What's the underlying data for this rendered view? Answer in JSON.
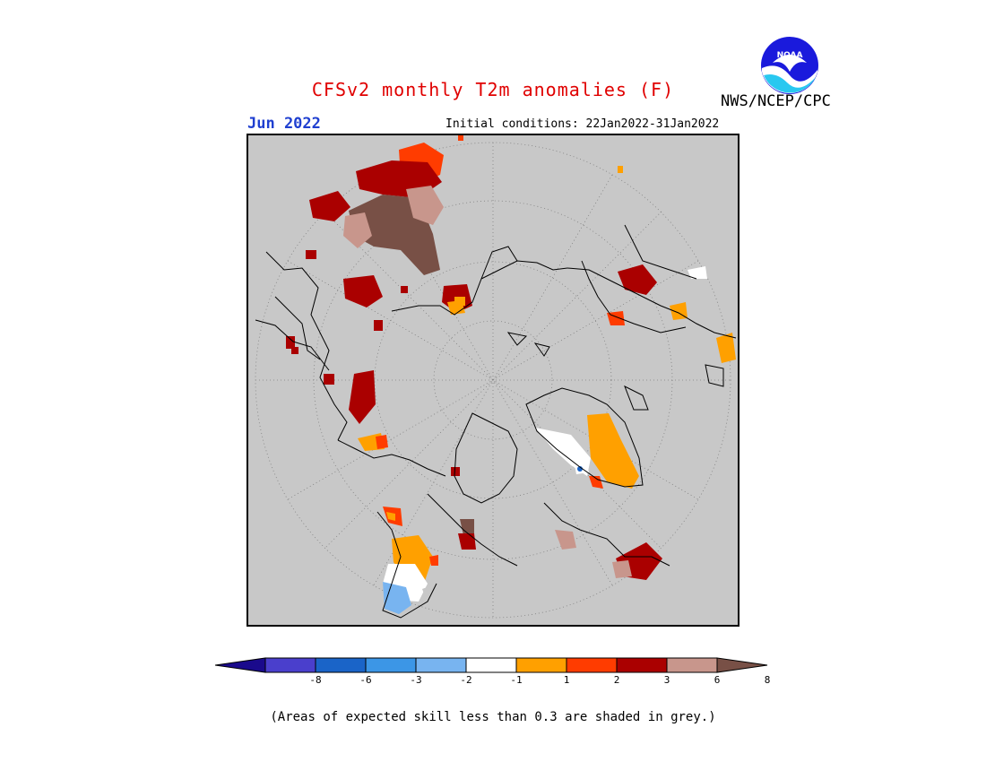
{
  "title": "CFSv2 monthly T2m anomalies (F)",
  "month": "Jun 2022",
  "initial_conditions": "Initial conditions: 22Jan2022-31Jan2022",
  "agency": "NWS/NCEP/CPC",
  "logo_text": "NOAA",
  "note": "(Areas of expected skill less than 0.3 are shaded in grey.)",
  "colorbar": {
    "colors": [
      "#1a0a8c",
      "#4a3fcc",
      "#1a64c8",
      "#3c96e6",
      "#78b4f0",
      "#ffffff",
      "#ffa000",
      "#ff3c00",
      "#aa0000",
      "#c8968c",
      "#785046"
    ],
    "ticks": [
      "-8",
      "-6",
      "-3",
      "-2",
      "-1",
      "1",
      "2",
      "3",
      "6",
      "8"
    ]
  },
  "map": {
    "background": "#c8c8c8",
    "skill_mask_note": "grey"
  }
}
